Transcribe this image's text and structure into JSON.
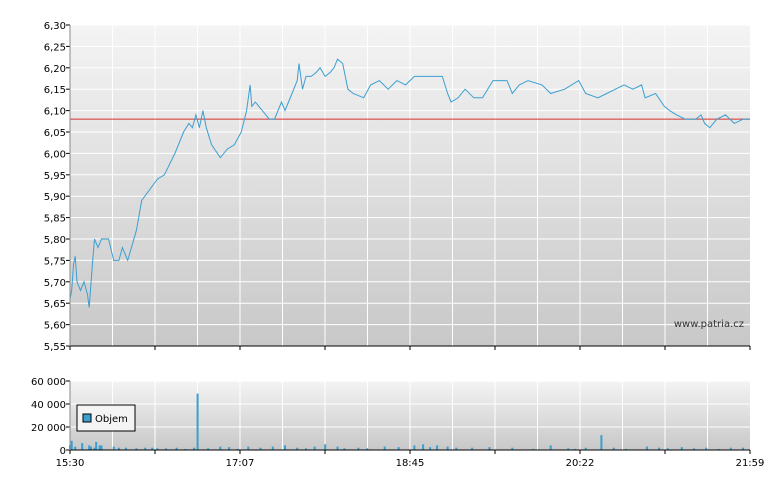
{
  "watermark": "www.patria.cz",
  "colors": {
    "price_line": "#3b9fd1",
    "reference_line": "#d9302c",
    "volume_bar": "#3b9fd1",
    "grid": "#ffffff",
    "plot_top": "#f4f4f4",
    "plot_bottom": "#c8c8c8",
    "axis": "#000000"
  },
  "legend": {
    "label": "Objem"
  },
  "chart_data": [
    {
      "type": "line",
      "name": "price",
      "x_ticks": [
        "15:30",
        "17:07",
        "18:45",
        "20:22",
        "21:59"
      ],
      "x_range_minutes": [
        930,
        1319
      ],
      "ylim": [
        5.55,
        6.3
      ],
      "y_ticks": [
        "5,55",
        "5,60",
        "5,65",
        "5,70",
        "5,75",
        "5,80",
        "5,85",
        "5,90",
        "5,95",
        "6,00",
        "6,05",
        "6,10",
        "6,15",
        "6,20",
        "6,25",
        "6,30"
      ],
      "reference_value": 6.08,
      "grid": true,
      "series": [
        {
          "points": [
            [
              "15:30",
              5.66
            ],
            [
              "15:31",
              5.68
            ],
            [
              "15:32",
              5.74
            ],
            [
              "15:33",
              5.76
            ],
            [
              "15:34",
              5.7
            ],
            [
              "15:36",
              5.68
            ],
            [
              "15:38",
              5.7
            ],
            [
              "15:40",
              5.67
            ],
            [
              "15:41",
              5.64
            ],
            [
              "15:43",
              5.75
            ],
            [
              "15:44",
              5.8
            ],
            [
              "15:46",
              5.78
            ],
            [
              "15:48",
              5.8
            ],
            [
              "15:52",
              5.8
            ],
            [
              "15:55",
              5.75
            ],
            [
              "15:58",
              5.75
            ],
            [
              "16:00",
              5.78
            ],
            [
              "16:03",
              5.75
            ],
            [
              "16:08",
              5.82
            ],
            [
              "16:11",
              5.89
            ],
            [
              "16:20",
              5.94
            ],
            [
              "16:24",
              5.95
            ],
            [
              "16:30",
              6.0
            ],
            [
              "16:35",
              6.05
            ],
            [
              "16:38",
              6.07
            ],
            [
              "16:40",
              6.06
            ],
            [
              "16:42",
              6.09
            ],
            [
              "16:44",
              6.06
            ],
            [
              "16:46",
              6.1
            ],
            [
              "16:48",
              6.06
            ],
            [
              "16:51",
              6.02
            ],
            [
              "16:56",
              5.99
            ],
            [
              "17:00",
              6.01
            ],
            [
              "17:04",
              6.02
            ],
            [
              "17:08",
              6.05
            ],
            [
              "17:11",
              6.1
            ],
            [
              "17:13",
              6.16
            ],
            [
              "17:14",
              6.11
            ],
            [
              "17:16",
              6.12
            ],
            [
              "17:20",
              6.1
            ],
            [
              "17:24",
              6.08
            ],
            [
              "17:27",
              6.08
            ],
            [
              "17:29",
              6.1
            ],
            [
              "17:31",
              6.12
            ],
            [
              "17:33",
              6.1
            ],
            [
              "17:35",
              6.12
            ],
            [
              "17:37",
              6.14
            ],
            [
              "17:40",
              6.17
            ],
            [
              "17:41",
              6.21
            ],
            [
              "17:43",
              6.15
            ],
            [
              "17:45",
              6.18
            ],
            [
              "17:48",
              6.18
            ],
            [
              "17:51",
              6.19
            ],
            [
              "17:53",
              6.2
            ],
            [
              "17:56",
              6.18
            ],
            [
              "17:59",
              6.19
            ],
            [
              "18:01",
              6.2
            ],
            [
              "18:03",
              6.22
            ],
            [
              "18:06",
              6.21
            ],
            [
              "18:09",
              6.15
            ],
            [
              "18:12",
              6.14
            ],
            [
              "18:18",
              6.13
            ],
            [
              "18:22",
              6.16
            ],
            [
              "18:27",
              6.17
            ],
            [
              "18:32",
              6.15
            ],
            [
              "18:37",
              6.17
            ],
            [
              "18:42",
              6.16
            ],
            [
              "18:47",
              6.18
            ],
            [
              "18:55",
              6.18
            ],
            [
              "19:03",
              6.18
            ],
            [
              "19:06",
              6.14
            ],
            [
              "19:08",
              6.12
            ],
            [
              "19:12",
              6.13
            ],
            [
              "19:16",
              6.15
            ],
            [
              "19:21",
              6.13
            ],
            [
              "19:26",
              6.13
            ],
            [
              "19:32",
              6.17
            ],
            [
              "19:40",
              6.17
            ],
            [
              "19:43",
              6.14
            ],
            [
              "19:47",
              6.16
            ],
            [
              "19:52",
              6.17
            ],
            [
              "20:00",
              6.16
            ],
            [
              "20:05",
              6.14
            ],
            [
              "20:13",
              6.15
            ],
            [
              "20:21",
              6.17
            ],
            [
              "20:25",
              6.14
            ],
            [
              "20:32",
              6.13
            ],
            [
              "20:37",
              6.14
            ],
            [
              "20:42",
              6.15
            ],
            [
              "20:47",
              6.16
            ],
            [
              "20:52",
              6.15
            ],
            [
              "20:57",
              6.16
            ],
            [
              "20:59",
              6.13
            ],
            [
              "21:05",
              6.14
            ],
            [
              "21:10",
              6.11
            ],
            [
              "21:13",
              6.1
            ],
            [
              "21:17",
              6.09
            ],
            [
              "21:22",
              6.08
            ],
            [
              "21:28",
              6.08
            ],
            [
              "21:31",
              6.09
            ],
            [
              "21:33",
              6.07
            ],
            [
              "21:36",
              6.06
            ],
            [
              "21:40",
              6.08
            ],
            [
              "21:45",
              6.09
            ],
            [
              "21:50",
              6.07
            ],
            [
              "21:55",
              6.08
            ],
            [
              "21:59",
              6.08
            ]
          ]
        }
      ]
    },
    {
      "type": "bar",
      "name": "volume",
      "x_ticks": [
        "15:30",
        "17:07",
        "18:45",
        "20:22",
        "21:59"
      ],
      "ylim": [
        0,
        60000
      ],
      "y_ticks": [
        "0",
        "20 000",
        "40 000",
        "60 000"
      ],
      "grid": true,
      "series": [
        {
          "name": "Objem",
          "points": [
            [
              "15:30",
              4000
            ],
            [
              "15:31",
              8000
            ],
            [
              "15:33",
              3000
            ],
            [
              "15:37",
              6000
            ],
            [
              "15:41",
              4000
            ],
            [
              "15:42",
              3000
            ],
            [
              "15:44",
              2000
            ],
            [
              "15:45",
              7000
            ],
            [
              "15:47",
              4000
            ],
            [
              "15:48",
              4000
            ],
            [
              "15:55",
              3000
            ],
            [
              "15:58",
              2000
            ],
            [
              "16:02",
              2000
            ],
            [
              "16:08",
              1500
            ],
            [
              "16:13",
              2000
            ],
            [
              "16:17",
              2000
            ],
            [
              "16:20",
              1500
            ],
            [
              "16:25",
              1500
            ],
            [
              "16:31",
              2000
            ],
            [
              "16:36",
              1000
            ],
            [
              "16:41",
              2000
            ],
            [
              "16:43",
              49000
            ],
            [
              "16:49",
              1500
            ],
            [
              "16:56",
              3000
            ],
            [
              "17:01",
              2500
            ],
            [
              "17:06",
              1000
            ],
            [
              "17:12",
              3000
            ],
            [
              "17:19",
              2000
            ],
            [
              "17:26",
              3000
            ],
            [
              "17:33",
              4000
            ],
            [
              "17:40",
              2000
            ],
            [
              "17:45",
              1500
            ],
            [
              "17:50",
              3000
            ],
            [
              "17:56",
              5000
            ],
            [
              "18:03",
              3000
            ],
            [
              "18:07",
              1500
            ],
            [
              "18:15",
              2000
            ],
            [
              "18:20",
              1500
            ],
            [
              "18:30",
              3000
            ],
            [
              "18:38",
              2500
            ],
            [
              "18:47",
              4000
            ],
            [
              "18:52",
              5000
            ],
            [
              "18:56",
              2500
            ],
            [
              "19:00",
              4000
            ],
            [
              "19:06",
              3000
            ],
            [
              "19:11",
              2000
            ],
            [
              "19:20",
              2000
            ],
            [
              "19:30",
              2500
            ],
            [
              "19:43",
              2000
            ],
            [
              "19:55",
              1000
            ],
            [
              "20:05",
              4000
            ],
            [
              "20:15",
              1500
            ],
            [
              "20:19",
              1000
            ],
            [
              "20:25",
              2000
            ],
            [
              "20:34",
              13000
            ],
            [
              "20:41",
              2000
            ],
            [
              "20:48",
              1000
            ],
            [
              "21:00",
              3000
            ],
            [
              "21:07",
              2000
            ],
            [
              "21:12",
              1500
            ],
            [
              "21:20",
              2500
            ],
            [
              "21:27",
              1500
            ],
            [
              "21:34",
              2000
            ],
            [
              "21:41",
              1000
            ],
            [
              "21:48",
              2000
            ],
            [
              "21:55",
              2000
            ]
          ]
        }
      ]
    }
  ]
}
